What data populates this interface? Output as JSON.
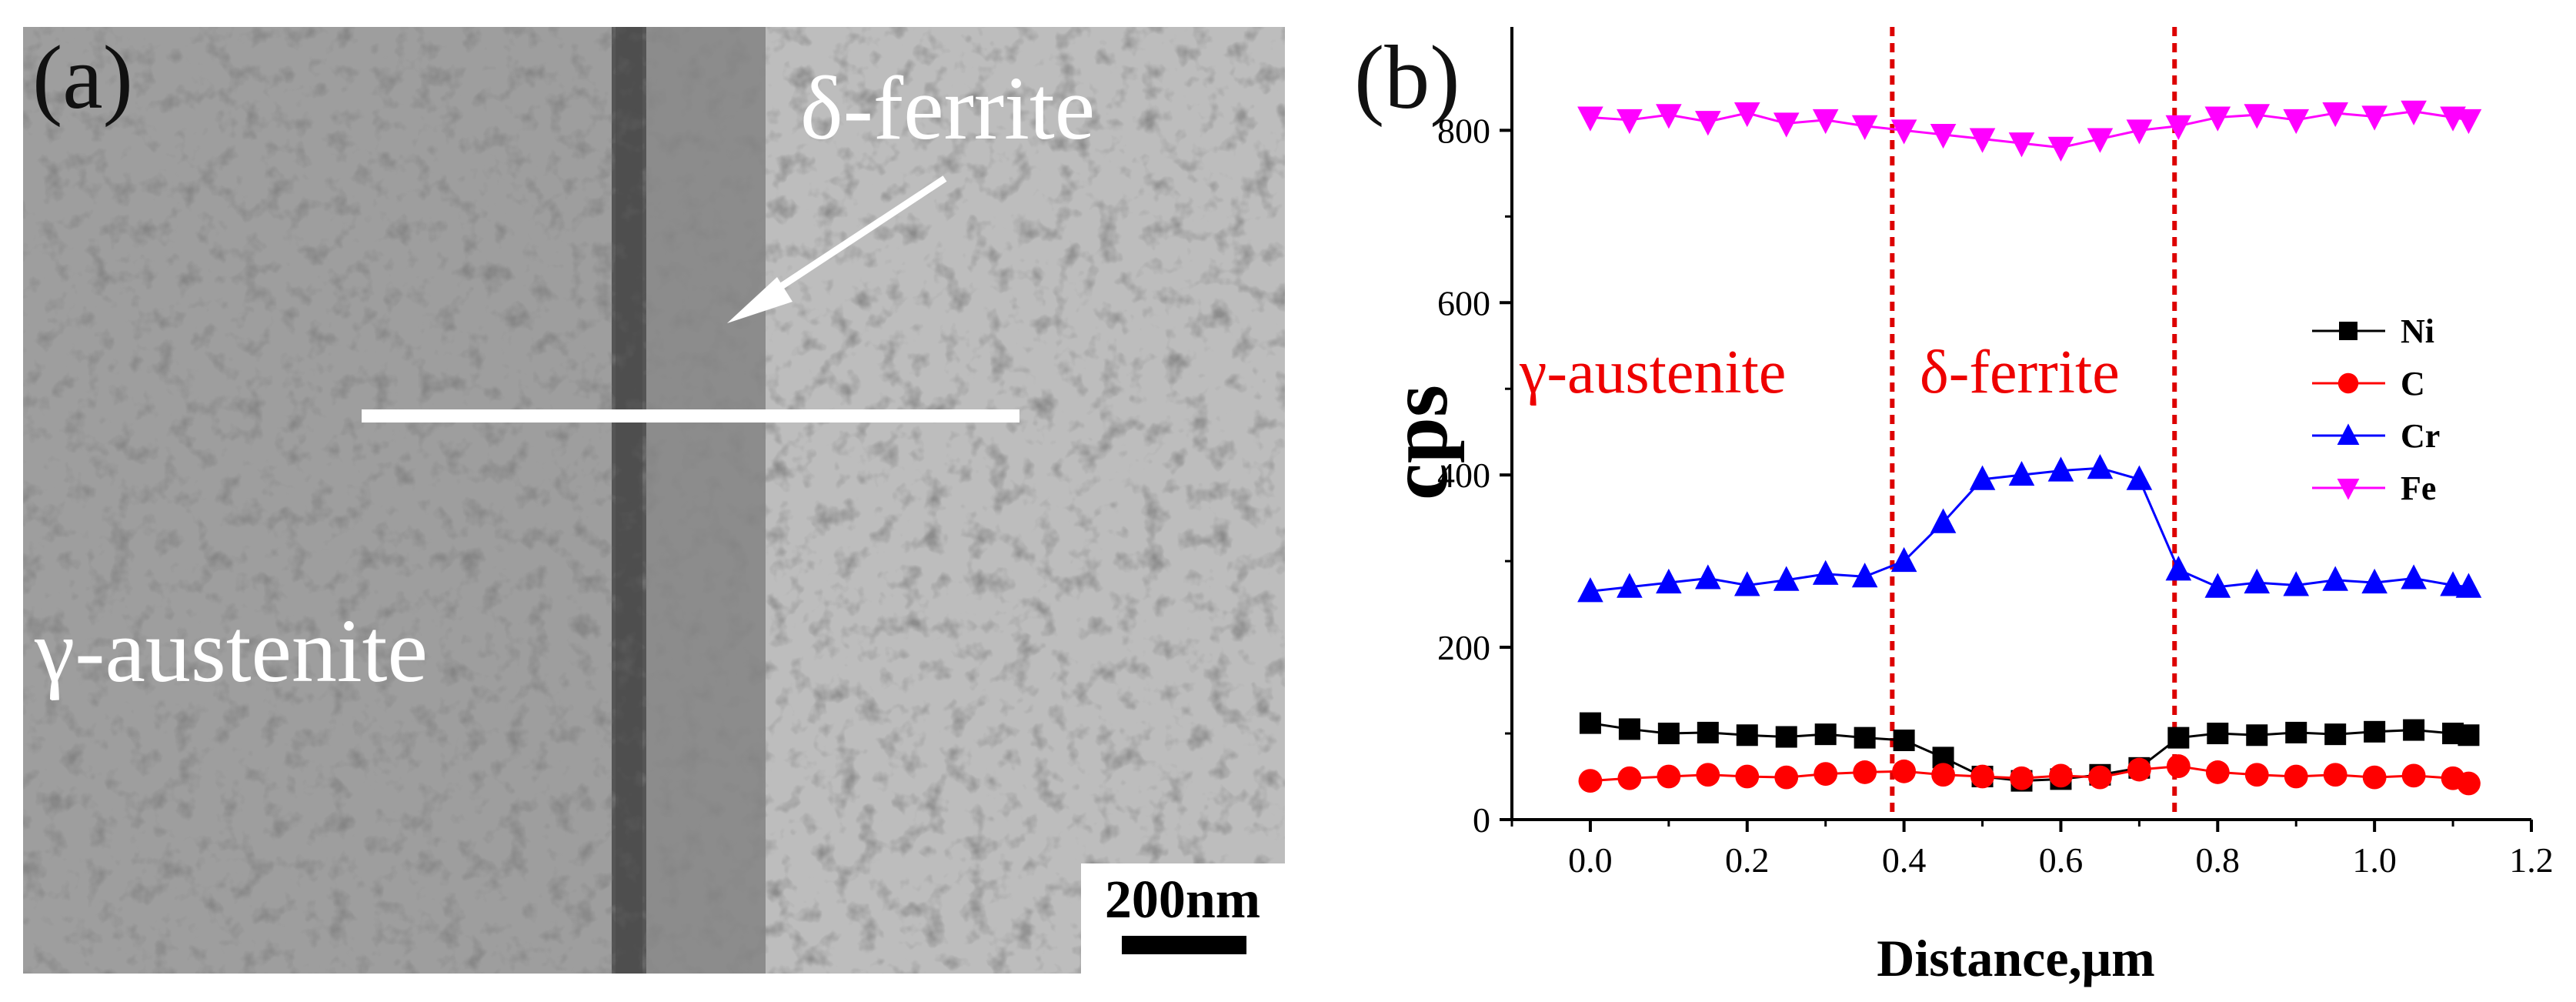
{
  "panel_a": {
    "label": "(a)",
    "phase_top": "δ-ferrite",
    "phase_bottom": "γ-austenite",
    "scale_bar": "200nm"
  },
  "panel_b": {
    "label": "(b)"
  },
  "chart_data": {
    "type": "scatter",
    "xlabel": "Distance,μm",
    "ylabel": "cps",
    "xlim": [
      -0.1,
      1.2
    ],
    "ylim": [
      0,
      920
    ],
    "xticks": [
      0.0,
      0.2,
      0.4,
      0.6,
      0.8,
      1.0,
      1.2
    ],
    "yticks": [
      0,
      200,
      400,
      600,
      800
    ],
    "xtick_labels": [
      "0.0",
      "0.2",
      "0.4",
      "0.6",
      "0.8",
      "1.0",
      "1.2"
    ],
    "ytick_labels": [
      "0",
      "200",
      "400",
      "600",
      "800"
    ],
    "legend_position": "right",
    "region_boundaries": [
      0.385,
      0.745
    ],
    "region_labels": [
      "γ-austenite",
      "δ-ferrite"
    ],
    "colors": {
      "Ni": "#000000",
      "C": "#ff0000",
      "Cr": "#0000ff",
      "Fe": "#ff00ff",
      "boundary": "#dd0000"
    },
    "x": [
      0.0,
      0.05,
      0.1,
      0.15,
      0.2,
      0.25,
      0.3,
      0.35,
      0.4,
      0.45,
      0.5,
      0.55,
      0.6,
      0.65,
      0.7,
      0.75,
      0.8,
      0.85,
      0.9,
      0.95,
      1.0,
      1.05,
      1.1,
      1.12
    ],
    "series": [
      {
        "name": "Ni",
        "marker": "square",
        "values": [
          112,
          105,
          100,
          101,
          98,
          96,
          99,
          95,
          92,
          72,
          50,
          45,
          47,
          52,
          60,
          95,
          100,
          98,
          101,
          99,
          102,
          104,
          100,
          98
        ]
      },
      {
        "name": "C",
        "marker": "circle",
        "values": [
          45,
          48,
          50,
          52,
          50,
          49,
          53,
          55,
          56,
          52,
          50,
          48,
          51,
          49,
          58,
          62,
          55,
          52,
          50,
          52,
          49,
          51,
          48,
          42
        ]
      },
      {
        "name": "Cr",
        "marker": "triangle-up",
        "values": [
          265,
          270,
          275,
          280,
          272,
          278,
          285,
          282,
          300,
          345,
          395,
          400,
          405,
          408,
          395,
          290,
          270,
          275,
          272,
          278,
          275,
          280,
          272,
          270
        ]
      },
      {
        "name": "Fe",
        "marker": "triangle-down",
        "values": [
          815,
          812,
          818,
          810,
          820,
          808,
          812,
          805,
          800,
          795,
          790,
          785,
          780,
          790,
          800,
          805,
          815,
          818,
          812,
          820,
          816,
          822,
          815,
          812
        ]
      }
    ]
  }
}
